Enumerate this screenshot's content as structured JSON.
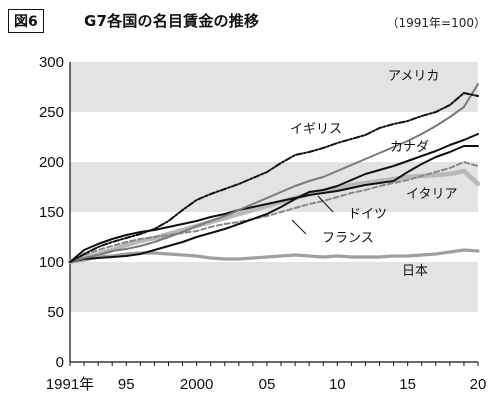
{
  "header": {
    "badge": "図6",
    "title": "G7各国の名目賃金の推移",
    "note": "（1991年=100）"
  },
  "colors": {
    "band": "#e3e3e3",
    "axis": "#111111",
    "america": "#111111",
    "england": "#111111",
    "canada": "#111111",
    "germany": "#888888",
    "france": "#111111",
    "italy": "#b9b9b9",
    "japan": "#a0a0a0"
  },
  "chart_data": {
    "type": "line",
    "xlabel": "",
    "ylabel": "",
    "ylim": [
      0,
      300
    ],
    "xlim": [
      1991,
      2020
    ],
    "y_ticks": [
      "0",
      "50",
      "100",
      "150",
      "200",
      "250",
      "300"
    ],
    "x_ticks": [
      {
        "year": 1991,
        "label": "1991年"
      },
      {
        "year": 1995,
        "label": "95"
      },
      {
        "year": 2000,
        "label": "2000"
      },
      {
        "year": 2005,
        "label": "05"
      },
      {
        "year": 2010,
        "label": "10"
      },
      {
        "year": 2015,
        "label": "15"
      },
      {
        "year": 2020,
        "label": "20"
      }
    ],
    "grid": "alternating horizontal bands",
    "x": [
      1991,
      1992,
      1993,
      1994,
      1995,
      1996,
      1997,
      1998,
      1999,
      2000,
      2001,
      2002,
      2003,
      2004,
      2005,
      2006,
      2007,
      2008,
      2009,
      2010,
      2011,
      2012,
      2013,
      2014,
      2015,
      2016,
      2017,
      2018,
      2019,
      2020
    ],
    "series": [
      {
        "name": "アメリカ",
        "key": "america",
        "values": [
          100,
          104,
          107,
          111,
          113,
          116,
          120,
          125,
          130,
          136,
          141,
          146,
          152,
          158,
          164,
          170,
          176,
          181,
          185,
          191,
          197,
          203,
          209,
          215,
          221,
          228,
          236,
          245,
          255,
          278
        ]
      },
      {
        "name": "イギリス",
        "key": "england",
        "values": [
          100,
          108,
          115,
          120,
          124,
          128,
          133,
          141,
          152,
          162,
          168,
          173,
          178,
          184,
          190,
          199,
          207,
          210,
          214,
          219,
          223,
          227,
          234,
          238,
          241,
          246,
          250,
          257,
          269,
          266
        ]
      },
      {
        "name": "カナダ",
        "key": "canada",
        "values": [
          100,
          103,
          104,
          105,
          106,
          108,
          112,
          116,
          120,
          125,
          129,
          133,
          138,
          143,
          148,
          155,
          163,
          170,
          172,
          176,
          182,
          188,
          192,
          196,
          201,
          206,
          211,
          217,
          222,
          228
        ]
      },
      {
        "name": "ドイツ",
        "key": "germany",
        "values": [
          100,
          107,
          112,
          116,
          120,
          123,
          125,
          127,
          129,
          131,
          135,
          138,
          140,
          143,
          146,
          150,
          154,
          158,
          161,
          165,
          169,
          172,
          176,
          179,
          182,
          186,
          190,
          194,
          200,
          196
        ]
      },
      {
        "name": "フランス",
        "key": "france",
        "values": [
          100,
          112,
          118,
          123,
          127,
          130,
          132,
          135,
          138,
          141,
          145,
          148,
          152,
          155,
          158,
          161,
          164,
          167,
          169,
          171,
          174,
          177,
          179,
          181,
          190,
          198,
          205,
          210,
          216,
          216
        ]
      },
      {
        "name": "イタリア",
        "key": "italy",
        "values": [
          100,
          104,
          108,
          112,
          117,
          121,
          124,
          128,
          132,
          136,
          140,
          144,
          148,
          152,
          156,
          160,
          164,
          168,
          171,
          174,
          177,
          179,
          181,
          183,
          185,
          186,
          187,
          188,
          191,
          178
        ]
      },
      {
        "name": "日本",
        "key": "japan",
        "values": [
          100,
          102,
          105,
          106,
          108,
          109,
          109,
          108,
          107,
          106,
          104,
          103,
          103,
          104,
          105,
          106,
          107,
          106,
          105,
          106,
          105,
          105,
          105,
          106,
          106,
          107,
          108,
          110,
          112,
          111
        ]
      }
    ],
    "labels": {
      "america": "アメリカ",
      "england": "イギリス",
      "canada": "カナダ",
      "germany": "ドイツ",
      "france": "フランス",
      "italy": "イタリア",
      "japan": "日本"
    }
  }
}
